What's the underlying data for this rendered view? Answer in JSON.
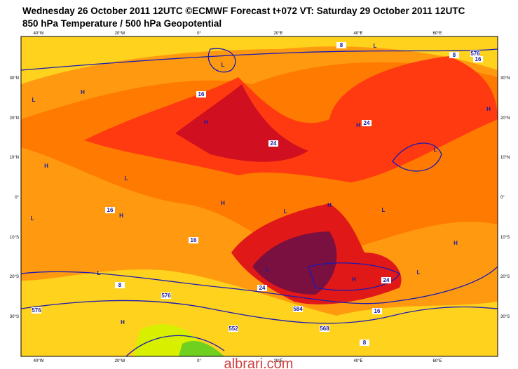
{
  "header": {
    "title": "Wednesday 26 October 2011 12UTC ©ECMWF Forecast t+072 VT: Saturday 29 October 2011 12UTC",
    "subtitle": "850 hPa Temperature / 500 hPa Geopotential"
  },
  "map": {
    "lon_labels": [
      "40°W",
      "20°W",
      "0°",
      "20°E",
      "40°E",
      "60°E"
    ],
    "lat_labels": [
      "30°N",
      "20°N",
      "10°N",
      "0°",
      "10°S",
      "20°S",
      "30°S"
    ],
    "contour_labels": [
      "8",
      "8",
      "576",
      "16",
      "16",
      "24",
      "24",
      "16",
      "16",
      "8",
      "24",
      "24",
      "16",
      "8",
      "576",
      "576",
      "552",
      "568",
      "584"
    ],
    "pressure_centers": [
      "L",
      "H",
      "L",
      "L",
      "H",
      "H",
      "L",
      "H",
      "L",
      "H",
      "L",
      "L",
      "L",
      "H",
      "L",
      "H",
      "H",
      "H",
      "L",
      "H",
      "H",
      "L"
    ]
  },
  "watermark": "albrari.com"
}
